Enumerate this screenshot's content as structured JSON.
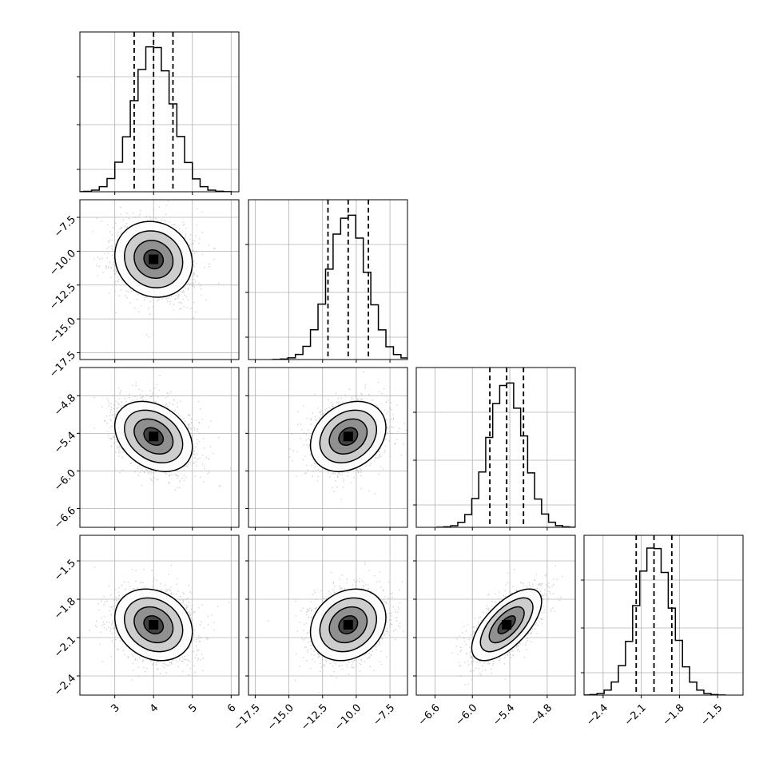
{
  "chart_data": {
    "type": "corner",
    "description": "corner",
    "params": [
      {
        "center": 4.0,
        "sd": 0.5,
        "q16": 3.5,
        "q50": 4.0,
        "q84": 4.5,
        "range": [
          2.1,
          6.2
        ],
        "ticks": [
          "3",
          "4",
          "5",
          "6"
        ],
        "tick_values": [
          3,
          4,
          5,
          6
        ]
      },
      {
        "center": -10.6,
        "sd": 1.4,
        "q16": -12.1,
        "q50": -10.6,
        "q84": -9.1,
        "range": [
          -18.0,
          -6.2
        ],
        "ticks": [
          "−17.5",
          "−15.0",
          "−12.5",
          "−10.0",
          "−7.5"
        ],
        "tick_values": [
          -17.5,
          -15.0,
          -12.5,
          -10.0,
          -7.5
        ]
      },
      {
        "center": -5.45,
        "sd": 0.28,
        "q16": -5.72,
        "q50": -5.45,
        "q84": -5.18,
        "range": [
          -6.9,
          -4.35
        ],
        "ticks": [
          "−6.6",
          "−6.0",
          "−5.4",
          "−4.8"
        ],
        "tick_values": [
          -6.6,
          -6.0,
          -5.4,
          -4.8
        ]
      },
      {
        "center": -2.0,
        "sd": 0.14,
        "q16": -2.14,
        "q50": -2.0,
        "q84": -1.86,
        "range": [
          -2.55,
          -1.3
        ],
        "ticks": [
          "−2.4",
          "−2.1",
          "−1.8",
          "−1.5"
        ],
        "tick_values": [
          -2.4,
          -2.1,
          -1.8,
          -1.5
        ]
      }
    ],
    "correlations": {
      "1-0": -0.1,
      "2-0": -0.3,
      "2-1": 0.25,
      "3-0": -0.2,
      "3-1": 0.2,
      "3-2": 0.65
    },
    "contour_levels_sigma": [
      0.5,
      1.0,
      1.5,
      2.0
    ],
    "show_quantiles": true,
    "grid": true,
    "samples_per_panel": 1800
  }
}
